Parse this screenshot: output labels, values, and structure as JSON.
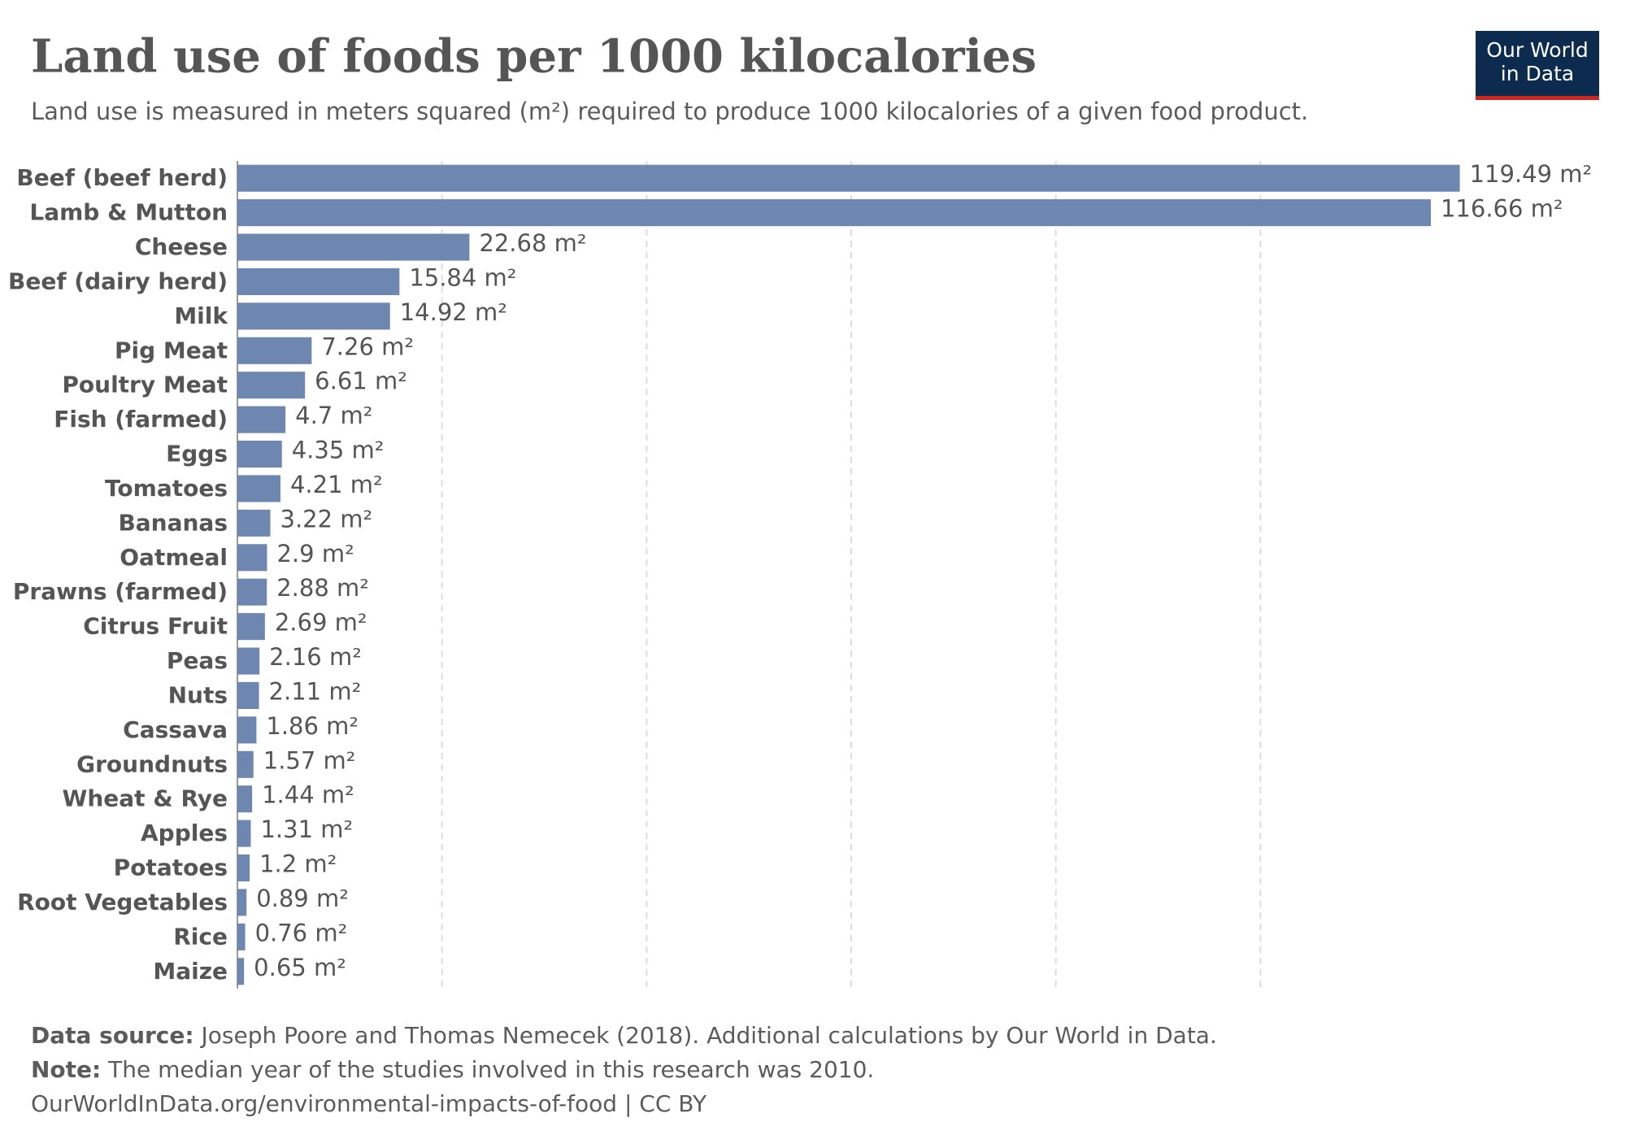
{
  "chart_data": {
    "type": "bar",
    "orientation": "horizontal",
    "title": "Land use of foods per 1000 kilocalories",
    "subtitle": "Land use is measured in meters squared (m²) required to produce 1000 kilocalories of a given food product.",
    "categories": [
      "Beef (beef herd)",
      "Lamb & Mutton",
      "Cheese",
      "Beef (dairy herd)",
      "Milk",
      "Pig Meat",
      "Poultry Meat",
      "Fish (farmed)",
      "Eggs",
      "Tomatoes",
      "Bananas",
      "Oatmeal",
      "Prawns (farmed)",
      "Citrus Fruit",
      "Peas",
      "Nuts",
      "Cassava",
      "Groundnuts",
      "Wheat & Rye",
      "Apples",
      "Potatoes",
      "Root Vegetables",
      "Rice",
      "Maize"
    ],
    "values": [
      119.49,
      116.66,
      22.68,
      15.84,
      14.92,
      7.26,
      6.61,
      4.7,
      4.35,
      4.21,
      3.22,
      2.9,
      2.88,
      2.69,
      2.16,
      2.11,
      1.86,
      1.57,
      1.44,
      1.31,
      1.2,
      0.89,
      0.76,
      0.65
    ],
    "value_labels": [
      "119.49 m²",
      "116.66 m²",
      "22.68 m²",
      "15.84 m²",
      "14.92 m²",
      "7.26 m²",
      "6.61 m²",
      "4.7 m²",
      "4.35 m²",
      "4.21 m²",
      "3.22 m²",
      "2.9 m²",
      "2.88 m²",
      "2.69 m²",
      "2.16 m²",
      "2.11 m²",
      "1.86 m²",
      "1.57 m²",
      "1.44 m²",
      "1.31 m²",
      "1.2 m²",
      "0.89 m²",
      "0.76 m²",
      "0.65 m²"
    ],
    "color": "#6d87b0",
    "xlim": [
      0,
      120
    ],
    "xticks": [
      0,
      20,
      40,
      60,
      80,
      100
    ],
    "grid": true
  },
  "footer": {
    "source_label": "Data source:",
    "source": "Joseph Poore and Thomas Nemecek (2018). Additional calculations by Our World in Data.",
    "note_label": "Note:",
    "note": "The median year of the studies involved in this research was 2010.",
    "url": "OurWorldInData.org/environmental-impacts-of-food | CC BY"
  },
  "logo": {
    "line1": "Our World",
    "line2": "in Data"
  }
}
